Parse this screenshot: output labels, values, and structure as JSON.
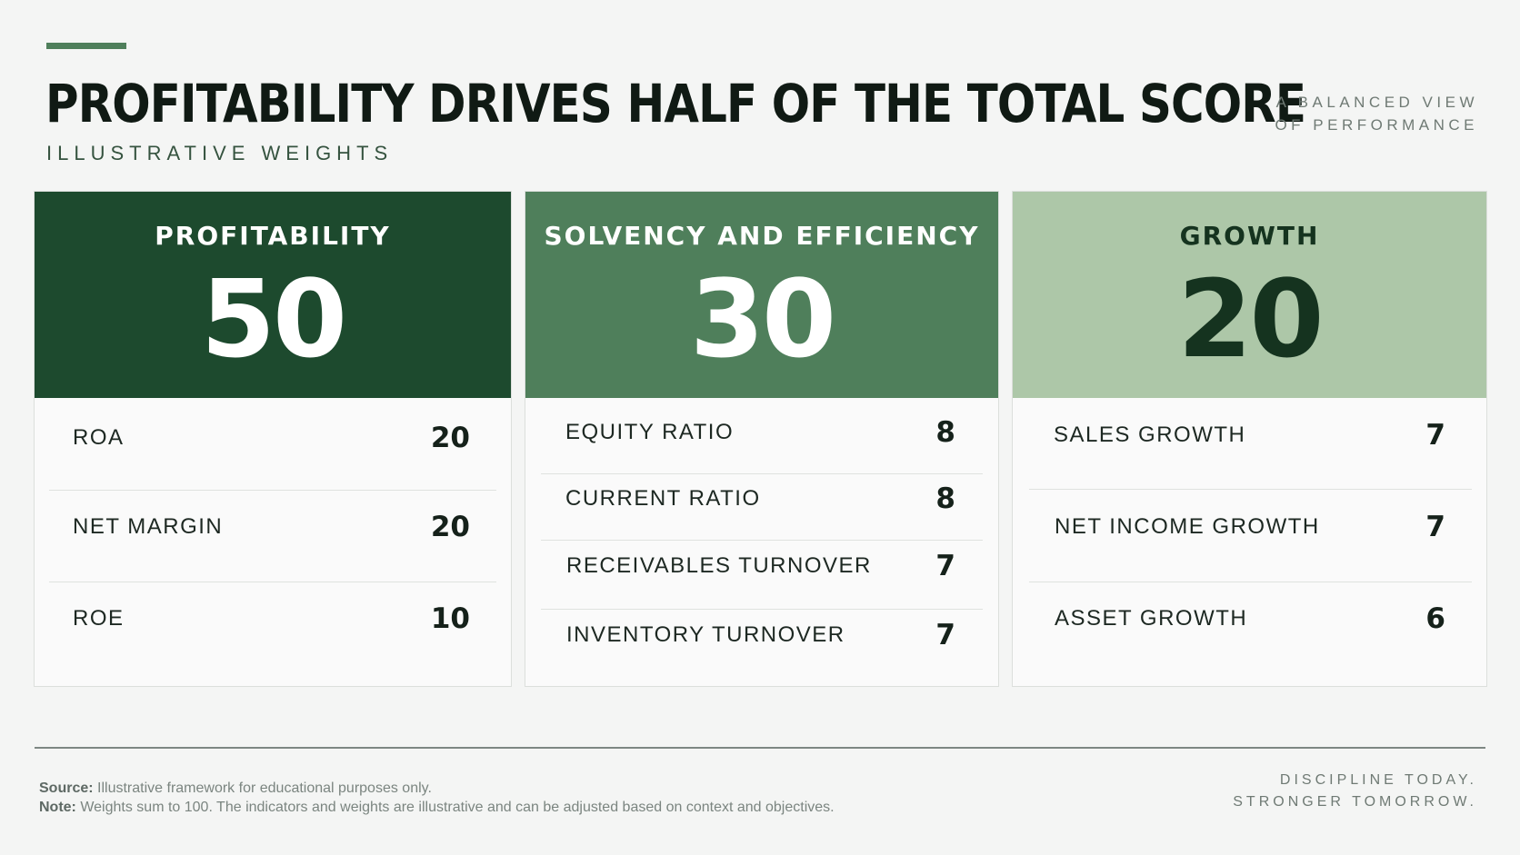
{
  "header": {
    "title": "PROFITABILITY DRIVES HALF OF THE TOTAL SCORE",
    "subtitle": "ILLUSTRATIVE WEIGHTS",
    "tagline_line1": "A BALANCED VIEW",
    "tagline_line2": "OF PERFORMANCE"
  },
  "colors": {
    "accent": "#4f7f5b",
    "profitability_head": "#1d4a2e",
    "solvency_head": "#4f7f5b",
    "growth_head": "#adc7a8",
    "head_text_light": "#ffffff",
    "head_text_dark": "#15331f"
  },
  "cards": [
    {
      "label": "PROFITABILITY",
      "score": "50",
      "rows": [
        {
          "name": "ROA",
          "value": "20"
        },
        {
          "name": "NET MARGIN",
          "value": "20"
        },
        {
          "name": "ROE",
          "value": "10"
        }
      ]
    },
    {
      "label": "SOLVENCY AND EFFICIENCY",
      "score": "30",
      "rows": [
        {
          "name": "EQUITY RATIO",
          "value": "8"
        },
        {
          "name": "CURRENT RATIO",
          "value": "8"
        },
        {
          "name": "RECEIVABLES TURNOVER",
          "value": "7"
        },
        {
          "name": "INVENTORY TURNOVER",
          "value": "7"
        }
      ]
    },
    {
      "label": "GROWTH",
      "score": "20",
      "rows": [
        {
          "name": "SALES GROWTH",
          "value": "7"
        },
        {
          "name": "NET INCOME GROWTH",
          "value": "7"
        },
        {
          "name": "ASSET GROWTH",
          "value": "6"
        }
      ]
    }
  ],
  "footer": {
    "source_label": "Source:",
    "source_text": "Illustrative framework for educational purposes only.",
    "note_label": "Note:",
    "note_text": "Weights sum to 100. The indicators and weights are illustrative and can be adjusted based on context and objectives.",
    "tag_line1": "DISCIPLINE TODAY.",
    "tag_line2": "STRONGER TOMORROW."
  }
}
